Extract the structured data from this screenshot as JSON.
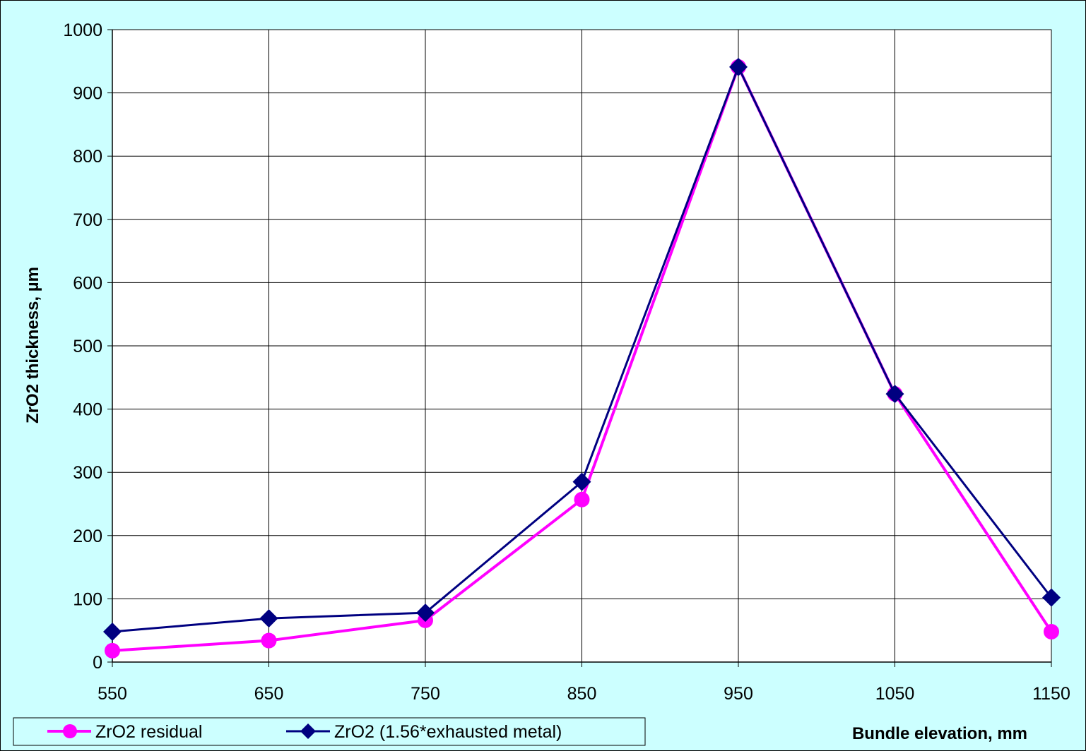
{
  "chart_data": {
    "type": "line",
    "title": "",
    "xlabel": "Bundle elevation, mm",
    "ylabel": "ZrO2 thickness, µm",
    "x": [
      550,
      650,
      750,
      850,
      950,
      1050,
      1150
    ],
    "x_ticks": [
      "550",
      "650",
      "750",
      "850",
      "950",
      "1050",
      "1150"
    ],
    "y_ticks": [
      "0",
      "100",
      "200",
      "300",
      "400",
      "500",
      "600",
      "700",
      "800",
      "900",
      "1000"
    ],
    "xlim": [
      550,
      1150
    ],
    "ylim": [
      0,
      1000
    ],
    "grid": true,
    "legend_position": "bottom-left",
    "series": [
      {
        "name": "ZrO2 residual",
        "color": "#ff00ff",
        "marker": "circle",
        "values": [
          18,
          34,
          66,
          257,
          941,
          424,
          48
        ]
      },
      {
        "name": "ZrO2 (1.56*exhausted metal)",
        "color": "#000080",
        "marker": "diamond",
        "values": [
          48,
          69,
          78,
          285,
          941,
          424,
          102
        ]
      }
    ],
    "background_color": "#ccffff",
    "plot_background_color": "#ffffff"
  }
}
